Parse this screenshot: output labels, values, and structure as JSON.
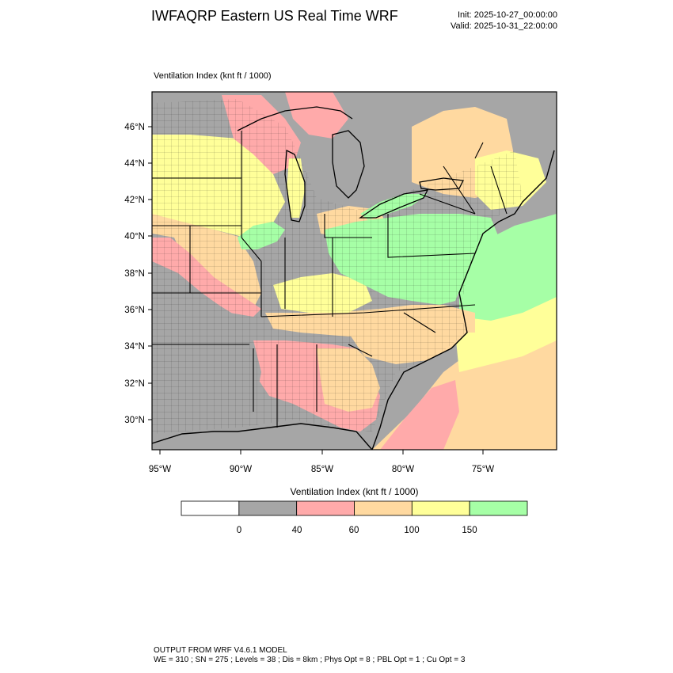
{
  "header": {
    "title": "IWFAQRP Eastern US Real Time WRF",
    "init": "Init: 2025-10-27_00:00:00",
    "valid": "Valid: 2025-10-31_22:00:00"
  },
  "map": {
    "caption": "Ventilation Index   (knt ft / 1000)",
    "lat_labels": [
      "46°N",
      "44°N",
      "42°N",
      "40°N",
      "38°N",
      "36°N",
      "34°N",
      "32°N",
      "30°N"
    ],
    "lon_labels": [
      "95°W",
      "90°W",
      "85°W",
      "80°W",
      "75°W"
    ]
  },
  "colorbar": {
    "title": "Ventilation Index  (knt ft / 1000)",
    "colors": [
      "#ffffff",
      "#a6a6a6",
      "#ffaaaa",
      "#ffd9a0",
      "#ffff99",
      "#a6ffa6"
    ],
    "labels": [
      "0",
      "40",
      "60",
      "100",
      "150"
    ]
  },
  "footer": {
    "line1": "OUTPUT FROM WRF V4.6.1 MODEL",
    "line2": "WE = 310 ; SN = 275 ; Levels = 38 ; Dis = 8km ; Phys Opt = 8 ; PBL Opt = 1 ; Cu Opt = 3"
  },
  "colors": {
    "water_gray": "#a6a6a6",
    "pink": "#ffaaaa",
    "peach": "#ffd9a0",
    "yellow": "#ffff99",
    "green": "#a6ffa6"
  }
}
